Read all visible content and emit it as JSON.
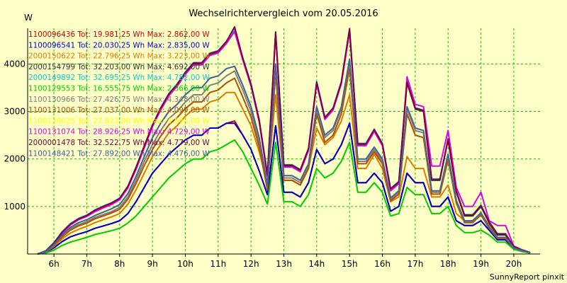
{
  "chart_data": {
    "type": "line",
    "title": "Wechselrichtervergleich vom 20.05.2016",
    "ylabel": "W",
    "footer": "SunnyReport pinxit",
    "grid": true,
    "ylim": [
      0,
      4750
    ],
    "xlim": [
      5.2,
      20.8
    ],
    "y_ticks": [
      1000,
      2000,
      3000,
      4000
    ],
    "x_ticks": [
      6,
      7,
      8,
      9,
      10,
      11,
      12,
      13,
      14,
      15,
      16,
      17,
      18,
      19,
      20
    ],
    "x_tick_labels": [
      "6h",
      "7h",
      "8h",
      "9h",
      "10h",
      "11h",
      "12h",
      "13h",
      "14h",
      "15h",
      "16h",
      "17h",
      "18h",
      "19h",
      "20h"
    ],
    "x": [
      5.5,
      5.75,
      6,
      6.25,
      6.5,
      6.75,
      7,
      7.25,
      7.5,
      7.75,
      8,
      8.25,
      8.5,
      8.75,
      9,
      9.25,
      9.5,
      9.75,
      10,
      10.25,
      10.5,
      10.75,
      11,
      11.25,
      11.5,
      11.75,
      12,
      12.25,
      12.5,
      12.75,
      13,
      13.25,
      13.5,
      13.75,
      14,
      14.25,
      14.5,
      14.75,
      15,
      15.25,
      15.5,
      15.75,
      16,
      16.25,
      16.5,
      16.75,
      17,
      17.25,
      17.5,
      17.75,
      18,
      18.25,
      18.5,
      18.75,
      19,
      19.25,
      19.5,
      19.75,
      20,
      20.25,
      20.5
    ],
    "series": [
      {
        "name": "1100096436",
        "total": "19.981,25",
        "max": "2.862,00",
        "color": "#cc0000",
        "values": [
          0,
          30,
          130,
          260,
          360,
          420,
          470,
          540,
          590,
          640,
          700,
          850,
          1100,
          1400,
          1700,
          1900,
          2100,
          2250,
          2400,
          2500,
          2500,
          2650,
          2650,
          2750,
          2800,
          2500,
          2200,
          1750,
          1250,
          2700,
          1300,
          1300,
          1200,
          1500,
          2200,
          1900,
          2000,
          2300,
          2750,
          1500,
          1500,
          1700,
          1500,
          900,
          1000,
          1700,
          1500,
          1500,
          1000,
          1000,
          1200,
          700,
          600,
          600,
          700,
          500,
          300,
          300,
          100,
          60,
          20
        ]
      },
      {
        "name": "1100096541",
        "total": "20.030,25",
        "max": "2.835,00",
        "color": "#0000cc",
        "values": [
          0,
          30,
          130,
          260,
          360,
          420,
          470,
          540,
          590,
          640,
          700,
          850,
          1100,
          1400,
          1700,
          1900,
          2100,
          2250,
          2400,
          2500,
          2500,
          2650,
          2650,
          2750,
          2750,
          2500,
          2200,
          1750,
          1250,
          2700,
          1300,
          1300,
          1200,
          1500,
          2200,
          1900,
          2000,
          2300,
          2750,
          1500,
          1500,
          1700,
          1500,
          900,
          1000,
          1700,
          1500,
          1500,
          1000,
          1000,
          1200,
          700,
          600,
          600,
          700,
          500,
          300,
          300,
          100,
          60,
          20
        ]
      },
      {
        "name": "2000150622",
        "total": "22.796,25",
        "max": "3.223,00",
        "color": "#e07800",
        "values": [
          0,
          40,
          160,
          320,
          440,
          520,
          580,
          660,
          720,
          780,
          850,
          1050,
          1350,
          1700,
          2050,
          2300,
          2550,
          2700,
          2900,
          3050,
          3050,
          3200,
          3250,
          3400,
          3400,
          3050,
          2700,
          2150,
          1500,
          3350,
          1550,
          1550,
          1450,
          1800,
          2650,
          2300,
          2450,
          2800,
          3350,
          1800,
          1800,
          2100,
          1800,
          1100,
          1200,
          2050,
          1800,
          1800,
          1200,
          1200,
          1450,
          850,
          700,
          700,
          850,
          600,
          350,
          350,
          120,
          70,
          20
        ]
      },
      {
        "name": "2000154799",
        "total": "32.203,00",
        "max": "4.692,00",
        "color": "#333333",
        "values": [
          0,
          60,
          220,
          450,
          620,
          730,
          800,
          900,
          980,
          1050,
          1150,
          1400,
          1800,
          2250,
          2700,
          3050,
          3350,
          3550,
          3800,
          4000,
          4000,
          4200,
          4250,
          4450,
          4700,
          4100,
          3550,
          2800,
          1650,
          4650,
          1850,
          1850,
          1750,
          2200,
          3600,
          2850,
          3050,
          3600,
          4700,
          2300,
          2300,
          2600,
          2300,
          1350,
          1500,
          3600,
          3050,
          3000,
          1550,
          1550,
          2400,
          1300,
          800,
          800,
          1000,
          650,
          400,
          400,
          150,
          80,
          30
        ]
      },
      {
        "name": "2000149892",
        "total": "32.695,25",
        "max": "4.782,00",
        "color": "#00cccc",
        "values": [
          0,
          70,
          240,
          470,
          640,
          750,
          820,
          930,
          1010,
          1080,
          1180,
          1430,
          1830,
          2280,
          2720,
          3080,
          3380,
          3580,
          3830,
          4030,
          4030,
          4230,
          4280,
          4480,
          4730,
          4130,
          3580,
          2830,
          1680,
          4680,
          1880,
          1880,
          1780,
          2230,
          3630,
          2880,
          3080,
          3630,
          4750,
          2330,
          2330,
          2630,
          2330,
          1380,
          1530,
          3630,
          3080,
          3030,
          1580,
          1580,
          2430,
          1330,
          830,
          830,
          1030,
          680,
          430,
          430,
          160,
          90,
          30
        ]
      },
      {
        "name": "1100129553",
        "total": "16.555,75",
        "max": "2.366,00",
        "color": "#00cc00",
        "values": [
          0,
          20,
          80,
          180,
          250,
          300,
          350,
          410,
          450,
          490,
          540,
          650,
          800,
          1000,
          1200,
          1400,
          1600,
          1750,
          1900,
          2000,
          2000,
          2150,
          2200,
          2300,
          2400,
          2150,
          1800,
          1450,
          1050,
          2350,
          1100,
          1100,
          1000,
          1250,
          1800,
          1600,
          1700,
          1950,
          2350,
          1300,
          1300,
          1500,
          1300,
          800,
          850,
          1400,
          1250,
          1250,
          850,
          850,
          1000,
          600,
          450,
          450,
          500,
          400,
          250,
          250,
          100,
          50,
          20
        ]
      },
      {
        "name": "1100130966",
        "total": "27.426,75",
        "max": "4.348,00",
        "color": "#808080",
        "values": [
          0,
          50,
          190,
          380,
          530,
          620,
          680,
          770,
          830,
          890,
          980,
          1200,
          1550,
          1950,
          2300,
          2600,
          2850,
          3000,
          3200,
          3350,
          3350,
          3550,
          3600,
          3750,
          3850,
          3450,
          3000,
          2350,
          1400,
          3950,
          1600,
          1600,
          1500,
          1850,
          3050,
          2450,
          2600,
          3050,
          4050,
          1950,
          1950,
          2200,
          1950,
          1150,
          1300,
          3050,
          2600,
          2550,
          1300,
          1300,
          2050,
          1100,
          680,
          680,
          850,
          560,
          340,
          340,
          130,
          70,
          25
        ]
      },
      {
        "name": "1100131006",
        "total": "27.037,00",
        "max": "4.099,00",
        "color": "#b05000",
        "values": [
          0,
          45,
          180,
          360,
          500,
          590,
          650,
          740,
          800,
          860,
          940,
          1150,
          1480,
          1860,
          2200,
          2480,
          2720,
          2870,
          3060,
          3200,
          3200,
          3400,
          3450,
          3600,
          3700,
          3300,
          2880,
          2250,
          1350,
          3800,
          1550,
          1550,
          1450,
          1800,
          2950,
          2350,
          2500,
          2950,
          3900,
          1900,
          1900,
          2150,
          1900,
          1120,
          1260,
          2950,
          2500,
          2450,
          1260,
          1260,
          1980,
          1070,
          660,
          660,
          820,
          540,
          330,
          330,
          125,
          70,
          25
        ]
      },
      {
        "name": "1100129025",
        "total": "27.823,00",
        "max": "4.545,00",
        "color": "#ffff00",
        "values": [
          0,
          55,
          200,
          400,
          560,
          660,
          720,
          810,
          880,
          950,
          1040,
          1270,
          1630,
          2050,
          2450,
          2750,
          3000,
          3150,
          3350,
          3500,
          3500,
          3700,
          3750,
          3900,
          3950,
          3550,
          3100,
          2450,
          1450,
          4000,
          1650,
          1650,
          1550,
          1900,
          3100,
          2500,
          2650,
          3100,
          4100,
          2000,
          2000,
          2250,
          2000,
          1180,
          1330,
          3100,
          2650,
          2600,
          1330,
          1330,
          2100,
          1130,
          700,
          700,
          870,
          570,
          350,
          350,
          130,
          75,
          25
        ]
      },
      {
        "name": "1100131074",
        "total": "28.926,25",
        "max": "4.729,00",
        "color": "#e000e0",
        "values": [
          0,
          60,
          220,
          440,
          610,
          720,
          790,
          890,
          970,
          1040,
          1140,
          1390,
          1780,
          2230,
          2680,
          3030,
          3330,
          3530,
          3780,
          3980,
          3980,
          4180,
          4230,
          4430,
          4680,
          4080,
          3530,
          2780,
          1630,
          4630,
          1830,
          1830,
          1730,
          2180,
          3580,
          2830,
          3030,
          3580,
          4680,
          2280,
          2280,
          2580,
          2280,
          1330,
          1480,
          3730,
          3150,
          3100,
          1850,
          1850,
          2600,
          1400,
          1000,
          1000,
          1300,
          700,
          600,
          600,
          170,
          90,
          30
        ]
      },
      {
        "name": "2000001478",
        "total": "32.522,75",
        "max": "4.779,00",
        "color": "#800040",
        "values": [
          0,
          60,
          230,
          460,
          630,
          740,
          810,
          920,
          1000,
          1070,
          1170,
          1420,
          1820,
          2270,
          2710,
          3070,
          3370,
          3570,
          3820,
          4020,
          4020,
          4220,
          4270,
          4470,
          4780,
          4120,
          3570,
          2820,
          1670,
          4670,
          1870,
          1870,
          1770,
          2220,
          3620,
          2870,
          3070,
          3620,
          4740,
          2320,
          2320,
          2620,
          2320,
          1370,
          1520,
          3620,
          3070,
          3020,
          1570,
          1570,
          2420,
          1320,
          820,
          820,
          1020,
          670,
          420,
          420,
          155,
          85,
          30
        ]
      },
      {
        "name": "1100148421",
        "total": "27.892,00",
        "max": "4.476,00",
        "color": "#4060a0",
        "values": [
          0,
          50,
          200,
          400,
          560,
          660,
          720,
          810,
          880,
          950,
          1040,
          1270,
          1630,
          2050,
          2450,
          2750,
          3000,
          3150,
          3350,
          3500,
          3500,
          3700,
          3750,
          3900,
          3950,
          3550,
          3100,
          2450,
          1450,
          4000,
          1650,
          1650,
          1550,
          1900,
          3100,
          2500,
          2650,
          3100,
          4100,
          2000,
          2000,
          2250,
          2000,
          1180,
          1330,
          3100,
          2650,
          2600,
          1330,
          1330,
          2100,
          1130,
          700,
          700,
          870,
          570,
          350,
          350,
          130,
          75,
          25
        ]
      }
    ]
  }
}
